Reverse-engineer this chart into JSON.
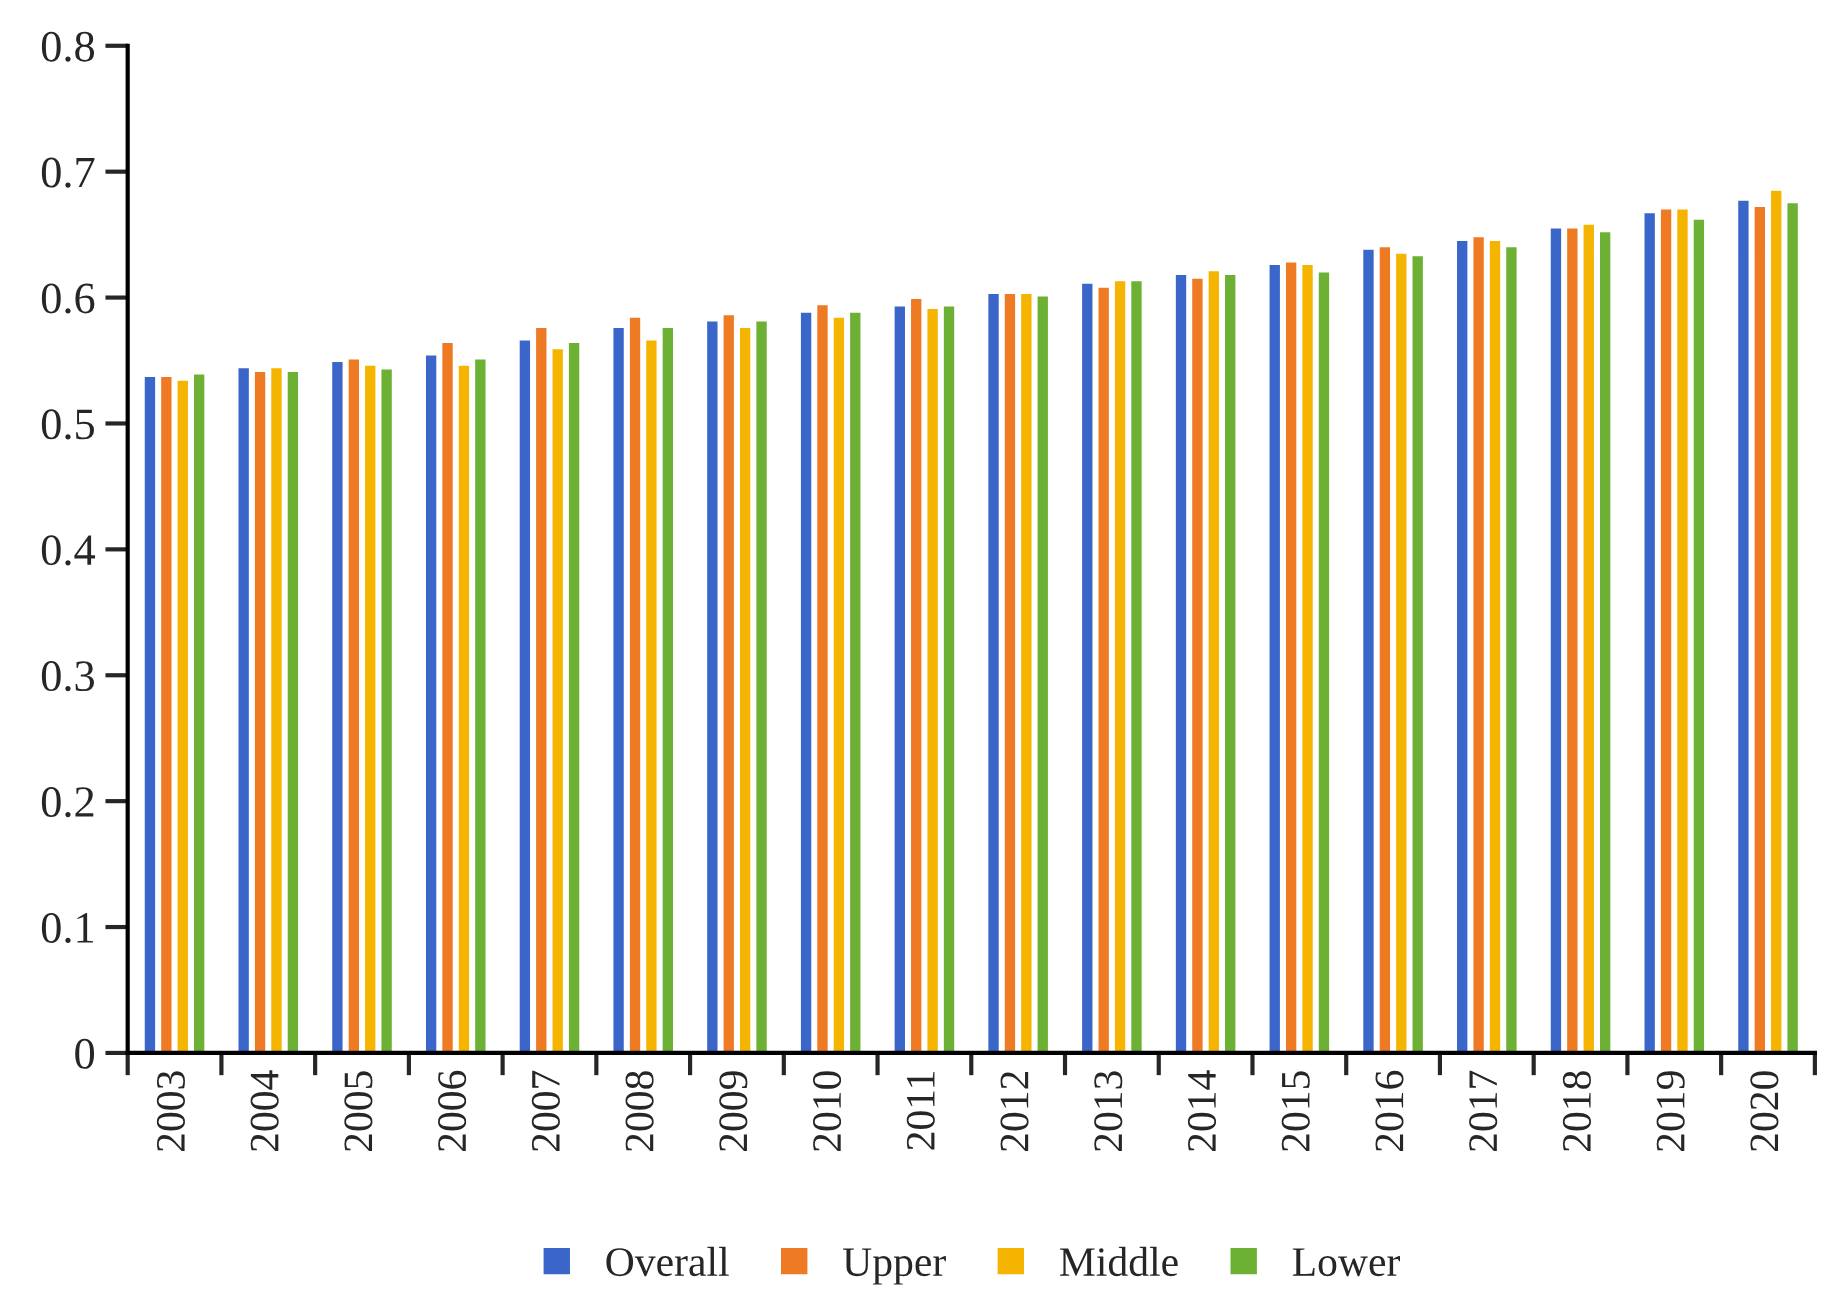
{
  "chart_data": {
    "type": "bar",
    "categories": [
      "2003",
      "2004",
      "2005",
      "2006",
      "2007",
      "2008",
      "2009",
      "2010",
      "2011",
      "2012",
      "2013",
      "2014",
      "2015",
      "2016",
      "2017",
      "2018",
      "2019",
      "2020"
    ],
    "series": [
      {
        "name": "Overall",
        "color": "#3a66c9",
        "values": [
          0.538,
          0.545,
          0.55,
          0.555,
          0.567,
          0.577,
          0.582,
          0.589,
          0.594,
          0.604,
          0.612,
          0.619,
          0.627,
          0.639,
          0.646,
          0.656,
          0.668,
          0.678
        ]
      },
      {
        "name": "Upper",
        "color": "#ee7a24",
        "values": [
          0.538,
          0.542,
          0.552,
          0.565,
          0.577,
          0.585,
          0.587,
          0.595,
          0.6,
          0.604,
          0.609,
          0.616,
          0.629,
          0.641,
          0.649,
          0.656,
          0.671,
          0.673
        ]
      },
      {
        "name": "Middle",
        "color": "#f4b400",
        "values": [
          0.535,
          0.545,
          0.547,
          0.547,
          0.56,
          0.567,
          0.577,
          0.585,
          0.592,
          0.604,
          0.614,
          0.622,
          0.627,
          0.636,
          0.646,
          0.659,
          0.671,
          0.686
        ]
      },
      {
        "name": "Lower",
        "color": "#6cb133",
        "values": [
          0.54,
          0.542,
          0.544,
          0.552,
          0.565,
          0.577,
          0.582,
          0.589,
          0.594,
          0.602,
          0.614,
          0.619,
          0.621,
          0.634,
          0.641,
          0.653,
          0.663,
          0.676
        ]
      }
    ],
    "ylim": [
      0,
      0.8
    ],
    "yticks": [
      {
        "value": 0,
        "label": "0"
      },
      0.1,
      0.2,
      0.3,
      0.4,
      0.5,
      0.6,
      0.7,
      0.8
    ],
    "grid": false,
    "legend": "bottom"
  }
}
